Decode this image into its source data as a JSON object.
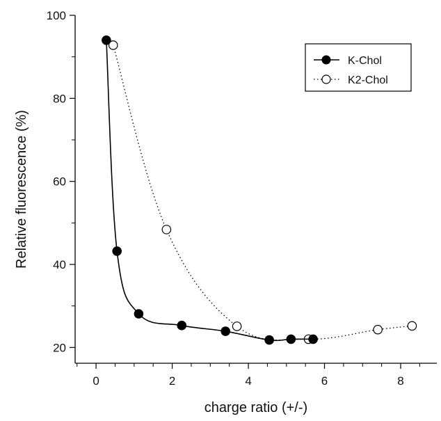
{
  "chart_data": {
    "type": "line",
    "xlabel": "charge ratio (+/-)",
    "ylabel": "Relative fluorescence (%)",
    "xlim": [
      -0.55,
      8.95
    ],
    "ylim": [
      16.2,
      100
    ],
    "x_ticks": [
      "0",
      "2",
      "4",
      "6",
      "8"
    ],
    "y_ticks": [
      "20",
      "40",
      "60",
      "80",
      "100"
    ],
    "grid": false,
    "legend_position": "top-right",
    "series": [
      {
        "name": "K-Chol",
        "marker": "filled-circle",
        "line_style": "solid",
        "color": "#000000",
        "x": [
          0.27,
          0.55,
          1.12,
          2.25,
          3.4,
          4.55,
          5.12,
          5.7
        ],
        "y": [
          94,
          43.2,
          28.1,
          25.3,
          23.9,
          21.8,
          22,
          22
        ]
      },
      {
        "name": "K2-Chol",
        "marker": "open-circle",
        "line_style": "dotted",
        "color": "#000000",
        "x": [
          0.45,
          1.85,
          3.7,
          5.58,
          7.4,
          8.3
        ],
        "y": [
          92.8,
          48.4,
          25.1,
          22,
          24.3,
          25.2
        ]
      }
    ]
  }
}
